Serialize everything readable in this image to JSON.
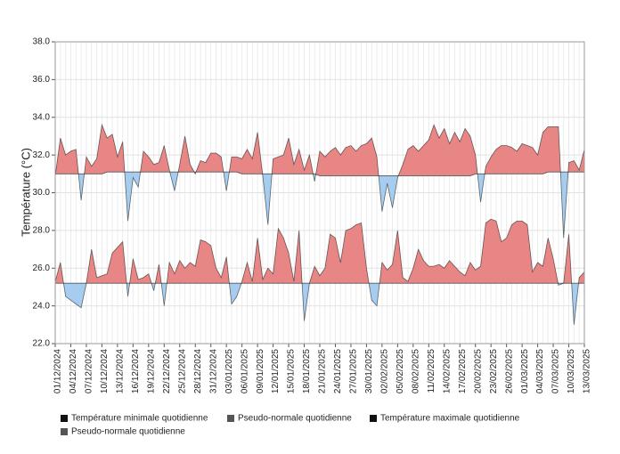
{
  "chart_data": {
    "type": "band-line",
    "y_label": "Température (°C)",
    "categories": [
      "01/12/2024",
      null,
      null,
      "04/12/2024",
      null,
      null,
      "07/12/2024",
      null,
      null,
      "10/12/2024",
      null,
      null,
      "13/12/2024",
      null,
      null,
      "16/12/2024",
      null,
      null,
      "19/12/2024",
      null,
      null,
      "22/12/2024",
      null,
      null,
      "25/12/2024",
      null,
      null,
      "28/12/2024",
      null,
      null,
      "31/12/2024",
      null,
      null,
      "03/01/2025",
      null,
      null,
      "06/01/2025",
      null,
      null,
      "09/01/2025",
      null,
      null,
      "12/01/2025",
      null,
      null,
      "15/01/2025",
      null,
      null,
      "18/01/2025",
      null,
      null,
      "21/01/2025",
      null,
      null,
      "24/01/2025",
      null,
      null,
      "27/01/2025",
      null,
      null,
      "30/01/2025",
      null,
      null,
      "02/02/2025",
      null,
      null,
      "05/02/2025",
      null,
      null,
      "08/02/2025",
      null,
      null,
      "11/02/2025",
      null,
      null,
      "14/02/2025",
      null,
      null,
      "17/02/2025",
      null,
      null,
      "20/02/2025",
      null,
      null,
      "23/02/2025",
      null,
      null,
      "26/02/2025",
      null,
      null,
      "01/03/2025",
      null,
      null,
      "04/03/2025",
      null,
      null,
      "07/03/2025",
      null,
      null,
      "10/03/2025",
      null,
      null,
      "13/03/2025"
    ],
    "series": [
      {
        "name": "Température minimale quotidienne",
        "color": "#111111",
        "values": [
          25.3,
          26.3,
          24.5,
          24.3,
          24.1,
          23.9,
          25.2,
          27.0,
          25.5,
          25.6,
          25.7,
          26.8,
          27.1,
          27.4,
          24.5,
          26.5,
          25.4,
          25.5,
          25.7,
          24.8,
          26.2,
          24.0,
          26.3,
          25.7,
          26.4,
          26.0,
          26.3,
          26.1,
          27.5,
          27.4,
          27.2,
          26.0,
          25.5,
          26.6,
          24.1,
          24.5,
          25.3,
          26.3,
          25.3,
          27.6,
          25.4,
          26.0,
          25.7,
          28.1,
          27.6,
          26.8,
          25.3,
          28.0,
          23.2,
          25.2,
          26.1,
          25.6,
          26.0,
          27.8,
          27.6,
          26.3,
          28.0,
          28.1,
          28.3,
          28.4,
          26.0,
          24.3,
          24.0,
          26.3,
          25.9,
          26.2,
          28.0,
          25.5,
          25.3,
          26.0,
          27.0,
          26.4,
          26.1,
          26.1,
          26.2,
          26.0,
          26.4,
          26.1,
          25.8,
          25.6,
          26.3,
          25.9,
          26.1,
          28.4,
          28.6,
          28.5,
          27.4,
          27.6,
          28.3,
          28.5,
          28.5,
          28.3,
          25.8,
          26.3,
          26.1,
          27.6,
          26.5,
          25.1,
          25.2,
          27.8,
          23.0,
          25.5,
          25.8
        ]
      },
      {
        "name": "Pseudo-normale quotidienne",
        "color": "#555555",
        "values": [
          25.2,
          25.2,
          25.2,
          25.2,
          25.2,
          25.2,
          25.2,
          25.2,
          25.2,
          25.2,
          25.2,
          25.2,
          25.2,
          25.2,
          25.2,
          25.2,
          25.2,
          25.2,
          25.2,
          25.2,
          25.2,
          25.2,
          25.2,
          25.2,
          25.2,
          25.2,
          25.2,
          25.2,
          25.2,
          25.2,
          25.2,
          25.2,
          25.2,
          25.2,
          25.2,
          25.2,
          25.2,
          25.2,
          25.2,
          25.2,
          25.2,
          25.2,
          25.2,
          25.2,
          25.2,
          25.2,
          25.2,
          25.2,
          25.2,
          25.2,
          25.2,
          25.2,
          25.2,
          25.2,
          25.2,
          25.2,
          25.2,
          25.2,
          25.2,
          25.2,
          25.2,
          25.2,
          25.2,
          25.2,
          25.2,
          25.2,
          25.2,
          25.2,
          25.2,
          25.2,
          25.2,
          25.2,
          25.2,
          25.2,
          25.2,
          25.2,
          25.2,
          25.2,
          25.2,
          25.2,
          25.2,
          25.2,
          25.2,
          25.2,
          25.2,
          25.2,
          25.2,
          25.2,
          25.2,
          25.2,
          25.2,
          25.2,
          25.2,
          25.2,
          25.2,
          25.2,
          25.2,
          25.2,
          25.2,
          25.2,
          25.2,
          25.2,
          25.2
        ]
      },
      {
        "name": "Température maximale quotidienne",
        "color": "#111111",
        "values": [
          30.9,
          32.9,
          32.0,
          32.2,
          32.3,
          29.6,
          31.9,
          31.4,
          31.8,
          33.6,
          32.9,
          33.1,
          31.9,
          32.7,
          28.5,
          30.8,
          30.3,
          32.2,
          31.9,
          31.5,
          31.6,
          32.5,
          31.2,
          30.1,
          31.5,
          33.0,
          31.5,
          31.0,
          31.7,
          31.6,
          32.1,
          32.1,
          31.9,
          30.1,
          31.9,
          31.9,
          31.8,
          32.3,
          31.8,
          33.2,
          30.9,
          28.3,
          31.8,
          31.9,
          32.0,
          32.9,
          31.5,
          32.3,
          31.2,
          32.0,
          30.6,
          32.2,
          31.9,
          32.2,
          32.4,
          32.0,
          32.4,
          32.5,
          32.2,
          32.5,
          32.6,
          32.9,
          31.9,
          29.0,
          30.5,
          29.2,
          30.8,
          31.5,
          32.3,
          32.5,
          32.2,
          32.5,
          32.8,
          33.6,
          32.9,
          33.4,
          32.6,
          33.2,
          32.7,
          33.4,
          33.0,
          32.0,
          29.5,
          31.4,
          31.9,
          32.3,
          32.5,
          32.5,
          32.4,
          32.2,
          32.6,
          32.5,
          32.4,
          32.0,
          33.2,
          33.5,
          33.5,
          33.5,
          27.6,
          31.6,
          31.7,
          31.2,
          32.3
        ]
      },
      {
        "name": "Pseudo-normale quotidienne",
        "color": "#555555",
        "values": [
          31.0,
          31.0,
          31.0,
          31.0,
          31.0,
          31.0,
          31.0,
          31.0,
          31.0,
          31.0,
          31.1,
          31.1,
          31.1,
          31.1,
          31.1,
          31.1,
          31.1,
          31.1,
          31.1,
          31.1,
          31.1,
          31.1,
          31.1,
          31.1,
          31.1,
          31.1,
          31.1,
          31.1,
          31.1,
          31.1,
          31.1,
          31.1,
          31.1,
          31.1,
          31.1,
          31.1,
          31.0,
          31.0,
          31.0,
          31.0,
          31.0,
          31.0,
          31.0,
          31.0,
          31.0,
          31.0,
          31.0,
          31.0,
          31.0,
          31.0,
          31.0,
          30.9,
          30.9,
          30.9,
          30.9,
          30.9,
          30.9,
          30.9,
          30.9,
          30.9,
          30.9,
          30.9,
          30.9,
          30.9,
          30.9,
          30.9,
          30.9,
          30.9,
          30.9,
          30.9,
          30.9,
          30.9,
          30.9,
          30.9,
          30.9,
          30.9,
          30.9,
          30.9,
          30.9,
          30.9,
          30.9,
          31.0,
          31.0,
          31.0,
          31.0,
          31.0,
          31.0,
          31.0,
          31.0,
          31.0,
          31.0,
          31.0,
          31.0,
          31.0,
          31.0,
          31.1,
          31.1,
          31.1,
          31.1,
          31.1,
          31.1,
          31.1,
          31.1
        ]
      }
    ],
    "fill_above": "#e88686",
    "fill_below": "#a6cdef",
    "ylim": [
      22,
      38
    ],
    "yticks": [
      {
        "value": 22,
        "label": "22.0"
      },
      {
        "value": 24,
        "label": "24.0"
      },
      {
        "value": 26,
        "label": "26.0"
      },
      {
        "value": 28,
        "label": "28.0"
      },
      {
        "value": 30,
        "label": "30.0"
      },
      {
        "value": 32,
        "label": "32.0"
      },
      {
        "value": 34,
        "label": "34.0"
      },
      {
        "value": 36,
        "label": "36.0"
      },
      {
        "value": 38,
        "label": "38.0"
      }
    ],
    "grid": true,
    "legend": "bottom"
  }
}
